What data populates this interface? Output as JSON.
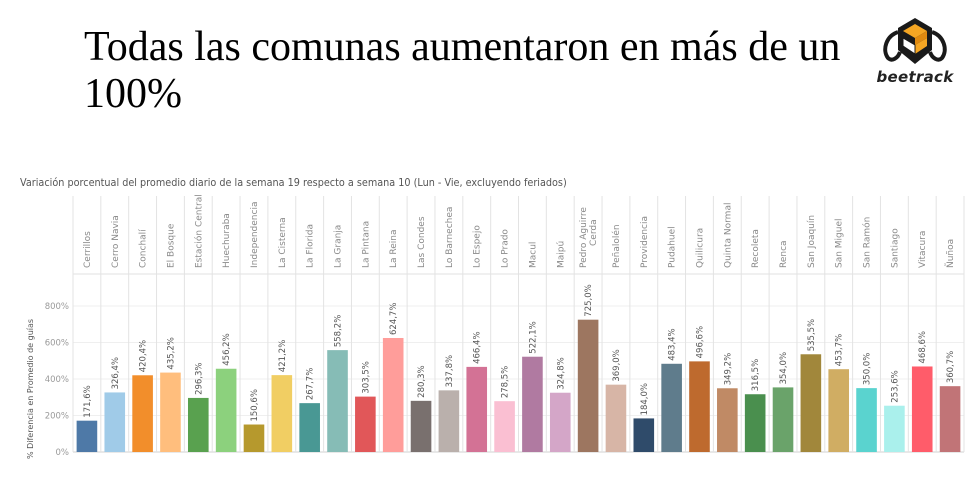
{
  "slide": {
    "title": "Todas las comunas aumentaron en más de un 100%",
    "logo_text": "beetrack",
    "logo_icon": "bee-logo-icon",
    "brand_colors": {
      "orange": "#F5A623",
      "dark": "#1a1a1a"
    }
  },
  "chart_data": {
    "type": "bar",
    "title": "Variación porcentual del promedio diario de la semana 19 respecto a semana 10 (Lun - Vie, excluyendo feriados)",
    "xlabel": "",
    "ylabel": "% Diferencia en Promedio de guías",
    "ylim": [
      0,
      900
    ],
    "yticks": [
      0,
      200,
      400,
      600,
      800
    ],
    "ytick_labels": [
      "0%",
      "200%",
      "400%",
      "600%",
      "800%"
    ],
    "grid": true,
    "legend": "none",
    "categories": [
      "Cerrillos",
      "Cerro Navia",
      "Conchalí",
      "El Bosque",
      "Estación Central",
      "Huechuraba",
      "Independencia",
      "La Cisterna",
      "La Florida",
      "La Granja",
      "La Pintana",
      "La Reina",
      "Las Condes",
      "Lo Barnechea",
      "Lo Espejo",
      "Lo Prado",
      "Macul",
      "Maipú",
      "Pedro Aguirre Cerda",
      "Peñalolén",
      "Providencia",
      "Pudahuel",
      "Quilicura",
      "Quinta Normal",
      "Recoleta",
      "Renca",
      "San Joaquín",
      "San Miguel",
      "San Ramón",
      "Santiago",
      "Vitacura",
      "Ñuñoa"
    ],
    "values": [
      171.6,
      326.4,
      420.4,
      435.2,
      296.3,
      456.2,
      150.6,
      421.2,
      267.7,
      558.2,
      303.5,
      624.7,
      280.3,
      337.8,
      466.4,
      278.5,
      522.1,
      324.8,
      725.0,
      369.0,
      184.0,
      483.4,
      496.6,
      349.2,
      316.5,
      354.0,
      535.5,
      453.7,
      350.0,
      253.6,
      468.6,
      360.7
    ],
    "value_labels": [
      "171,6%",
      "326,4%",
      "420,4%",
      "435,2%",
      "296,3%",
      "456,2%",
      "150,6%",
      "421,2%",
      "267,7%",
      "558,2%",
      "303,5%",
      "624,7%",
      "280,3%",
      "337,8%",
      "466,4%",
      "278,5%",
      "522,1%",
      "324,8%",
      "725,0%",
      "369,0%",
      "184,0%",
      "483,4%",
      "496,6%",
      "349,2%",
      "316,5%",
      "354,0%",
      "535,5%",
      "453,7%",
      "350,0%",
      "253,6%",
      "468,6%",
      "360,7%"
    ],
    "colors": [
      "#4E79A7",
      "#A0CBE8",
      "#F28E2B",
      "#FFBE7D",
      "#59A14F",
      "#8CD17D",
      "#B6992D",
      "#F1CE63",
      "#499894",
      "#86BCB6",
      "#E15759",
      "#FF9D9A",
      "#79706E",
      "#BAB0AC",
      "#D37295",
      "#FABFD2",
      "#B07AA1",
      "#D4A6C8",
      "#9D7660",
      "#D7B5A6",
      "#2F4B6A",
      "#5F7C8C",
      "#BE6A2E",
      "#C08A65",
      "#4A8F4E",
      "#6AA36A",
      "#A1873B",
      "#D0AD63",
      "#5AD3CF",
      "#AAF0EC",
      "#FF5C6A",
      "#C17477"
    ]
  }
}
